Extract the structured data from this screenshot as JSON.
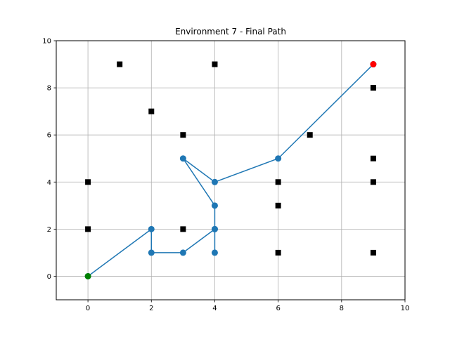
{
  "chart_data": {
    "type": "scatter",
    "title": "Environment 7 - Final Path",
    "xlabel": "",
    "ylabel": "",
    "xlim": [
      -1,
      10
    ],
    "ylim": [
      -1,
      10
    ],
    "xticks": [
      0,
      2,
      4,
      6,
      8,
      10
    ],
    "yticks": [
      0,
      2,
      4,
      6,
      8,
      10
    ],
    "grid": true,
    "legend": "none",
    "path": {
      "color": "#1f77b4",
      "points": [
        [
          0,
          0
        ],
        [
          2,
          2
        ],
        [
          2,
          1
        ],
        [
          3,
          1
        ],
        [
          4,
          2
        ],
        [
          4,
          1
        ],
        [
          4,
          2
        ],
        [
          4,
          3
        ],
        [
          3,
          5
        ],
        [
          4,
          4
        ],
        [
          6,
          5
        ],
        [
          9,
          9
        ]
      ]
    },
    "obstacles": {
      "color": "#000000",
      "marker": "square",
      "points": [
        [
          1,
          9
        ],
        [
          4,
          9
        ],
        [
          2,
          7
        ],
        [
          3,
          6
        ],
        [
          0,
          4
        ],
        [
          0,
          2
        ],
        [
          3,
          2
        ],
        [
          6,
          4
        ],
        [
          6,
          3
        ],
        [
          6,
          1
        ],
        [
          7,
          6
        ],
        [
          9,
          8
        ],
        [
          9,
          5
        ],
        [
          9,
          4
        ],
        [
          9,
          1
        ]
      ]
    },
    "start": {
      "color": "#008000",
      "point": [
        0,
        0
      ]
    },
    "goal": {
      "color": "#ff0000",
      "point": [
        9,
        9
      ]
    }
  }
}
